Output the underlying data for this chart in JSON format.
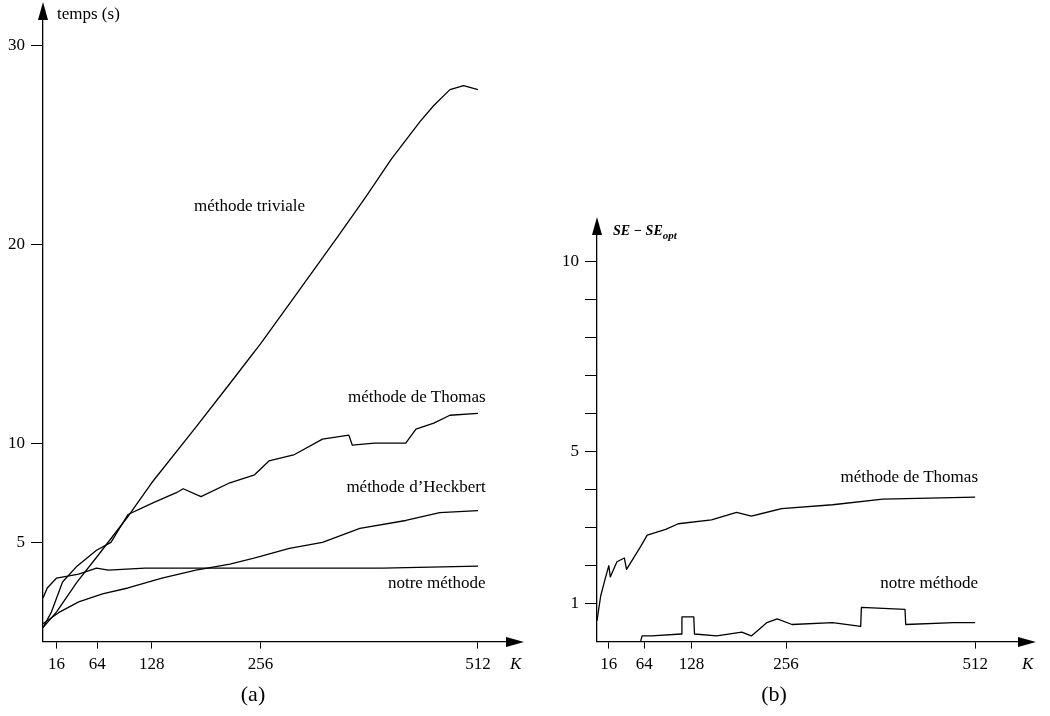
{
  "chart_data": [
    {
      "type": "line",
      "title": "(a)",
      "xlabel": "K",
      "ylabel": "temps (s)",
      "xlim": [
        0,
        545
      ],
      "xticks": [
        16,
        64,
        128,
        256,
        512
      ],
      "ylim": [
        0,
        31.5
      ],
      "yticks": [
        5,
        10,
        20,
        30
      ],
      "grid": false,
      "legend": false,
      "series": [
        {
          "name": "méthode triviale",
          "color": "#000000",
          "x": [
            0,
            16,
            40,
            64,
            100,
            128,
            180,
            220,
            256,
            300,
            347,
            380,
            410,
            444,
            460,
            479,
            495,
            512
          ],
          "values": [
            0.7,
            1.5,
            3.0,
            4.3,
            6.3,
            8.0,
            10.8,
            13.0,
            15.0,
            17.6,
            20.4,
            22.4,
            24.3,
            26.2,
            27.0,
            27.8,
            28.0,
            27.8
          ]
        },
        {
          "name": "méthode de Thomas",
          "color": "#000000",
          "x": [
            0,
            10,
            23,
            40,
            63,
            80,
            100,
            130,
            157,
            165,
            186,
            220,
            249,
            266,
            295,
            329,
            360,
            364,
            390,
            427,
            439,
            460,
            479,
            512
          ],
          "values": [
            0.7,
            1.5,
            3.0,
            3.8,
            4.6,
            5.0,
            6.4,
            7.0,
            7.5,
            7.7,
            7.3,
            8.0,
            8.4,
            9.1,
            9.4,
            10.2,
            10.4,
            9.9,
            10.0,
            10.0,
            10.7,
            11.0,
            11.4,
            11.5
          ]
        },
        {
          "name": "méthode d’Heckbert",
          "color": "#000000",
          "x": [
            0,
            20,
            42,
            70,
            100,
            140,
            180,
            220,
            257,
            290,
            329,
            373,
            427,
            467,
            512
          ],
          "values": [
            0.9,
            1.5,
            2.0,
            2.4,
            2.7,
            3.2,
            3.6,
            3.9,
            4.3,
            4.7,
            5.0,
            5.7,
            6.1,
            6.5,
            6.6
          ]
        },
        {
          "name": "notre méthode",
          "color": "#000000",
          "x": [
            0,
            5,
            16,
            42,
            63,
            77,
            120,
            200,
            300,
            400,
            512
          ],
          "values": [
            2.2,
            2.7,
            3.2,
            3.4,
            3.7,
            3.6,
            3.7,
            3.7,
            3.7,
            3.7,
            3.8
          ]
        }
      ]
    },
    {
      "type": "line",
      "title": "(b)",
      "xlabel": "K",
      "ylabel": "SE − SE$_{opt}$",
      "xlim": [
        0,
        570
      ],
      "xticks": [
        16,
        64,
        128,
        256,
        512
      ],
      "ylim": [
        0,
        10.8
      ],
      "yticks": [
        1,
        {
          "value": 2,
          "label": null
        },
        {
          "value": 3,
          "label": null
        },
        {
          "value": 4,
          "label": null
        },
        5,
        {
          "value": 6,
          "label": null
        },
        {
          "value": 7,
          "label": null
        },
        {
          "value": 8,
          "label": null
        },
        {
          "value": 9,
          "label": null
        },
        10
      ],
      "grid": false,
      "legend": false,
      "series": [
        {
          "name": "méthode de Thomas",
          "color": "#000000",
          "x": [
            0,
            5,
            11,
            16,
            18,
            27,
            37,
            40,
            59,
            68,
            93,
            110,
            155,
            189,
            209,
            250,
            319,
            387,
            512
          ],
          "values": [
            0.55,
            1.2,
            1.65,
            2.0,
            1.7,
            2.1,
            2.2,
            1.9,
            2.5,
            2.8,
            2.95,
            3.1,
            3.2,
            3.4,
            3.3,
            3.5,
            3.6,
            3.75,
            3.8
          ]
        },
        {
          "name": "notre méthode",
          "color": "#000000",
          "x": [
            0,
            59,
            61,
            74,
            114,
            115,
            131,
            132,
            162,
            196,
            209,
            230,
            244,
            264,
            319,
            357,
            358,
            417,
            418,
            483,
            512
          ],
          "values": [
            0,
            0,
            0.15,
            0.15,
            0.2,
            0.65,
            0.65,
            0.2,
            0.15,
            0.25,
            0.15,
            0.5,
            0.6,
            0.45,
            0.5,
            0.4,
            0.9,
            0.85,
            0.45,
            0.5,
            0.5
          ]
        }
      ]
    }
  ]
}
